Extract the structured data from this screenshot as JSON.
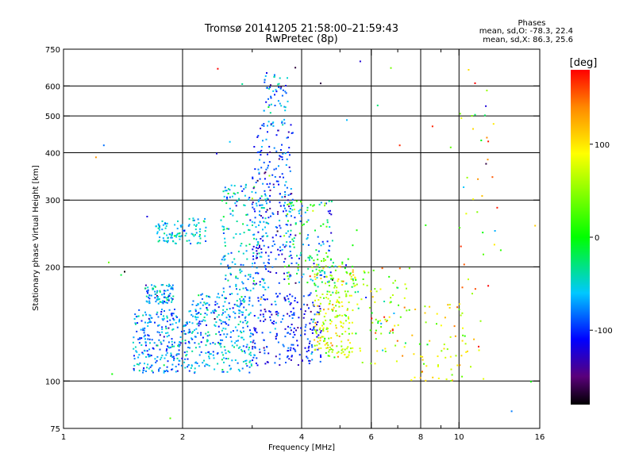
{
  "chart_data": {
    "type": "scatter",
    "title": "Tromsø 20141205 21:58:00–21:59:43",
    "subtitle": "RwPretec (8p)",
    "xlabel": "Frequency [MHz]",
    "ylabel": "Stationary phase Virtual Height [km]",
    "x_scale": "log",
    "y_scale": "log",
    "xlim": [
      1,
      16
    ],
    "ylim": [
      75,
      750
    ],
    "xticks": [
      1,
      2,
      4,
      6,
      8,
      10,
      16
    ],
    "xgrid": [
      2,
      4,
      6,
      8,
      10
    ],
    "xminor": [
      3,
      5,
      7,
      9
    ],
    "yticks": [
      75,
      100,
      200,
      300,
      400,
      500,
      600,
      750
    ],
    "ygrid": [
      100,
      200,
      300,
      400,
      500,
      600
    ],
    "grid": true,
    "phases": {
      "heading": "Phases",
      "o_line": "mean, sd,O:  -78.3, 22.4",
      "x_line": "mean, sd,X:   86.3, 25.6"
    },
    "colorbar": {
      "label": "[deg]",
      "range": [
        -180,
        180
      ],
      "ticks": [
        {
          "value": 100,
          "label": "100"
        },
        {
          "value": 0,
          "label": "0"
        },
        {
          "value": -100,
          "label": "-100"
        }
      ],
      "stops": [
        {
          "value": -180,
          "color": "#000000"
        },
        {
          "value": -150,
          "color": "#5a007a"
        },
        {
          "value": -110,
          "color": "#0000ff"
        },
        {
          "value": -60,
          "color": "#00c8ff"
        },
        {
          "value": 0,
          "color": "#00ff00"
        },
        {
          "value": 90,
          "color": "#ffff00"
        },
        {
          "value": 140,
          "color": "#ff8800"
        },
        {
          "value": 180,
          "color": "#ff0000"
        }
      ]
    },
    "clusters": [
      {
        "n": 260,
        "x": [
          1.5,
          2.1
        ],
        "y": [
          105,
          155
        ],
        "phase": [
          -75,
          25
        ]
      },
      {
        "n": 90,
        "x": [
          1.6,
          1.9
        ],
        "y": [
          160,
          180
        ],
        "phase": [
          -70,
          25
        ]
      },
      {
        "n": 60,
        "x": [
          1.7,
          2.0
        ],
        "y": [
          230,
          265
        ],
        "phase": [
          -60,
          20
        ]
      },
      {
        "n": 40,
        "x": [
          2.0,
          2.3
        ],
        "y": [
          230,
          270
        ],
        "phase": [
          -60,
          20
        ]
      },
      {
        "n": 300,
        "x": [
          2.1,
          3.0
        ],
        "y": [
          105,
          170
        ],
        "phase": [
          -65,
          25
        ]
      },
      {
        "n": 180,
        "x": [
          2.5,
          3.3
        ],
        "y": [
          170,
          330
        ],
        "phase": [
          -60,
          25
        ]
      },
      {
        "n": 220,
        "x": [
          3.0,
          3.8
        ],
        "y": [
          180,
          480
        ],
        "phase": [
          -100,
          22
        ]
      },
      {
        "n": 60,
        "x": [
          3.2,
          3.7
        ],
        "y": [
          470,
          650
        ],
        "phase": [
          -75,
          30
        ]
      },
      {
        "n": 220,
        "x": [
          3.0,
          4.5
        ],
        "y": [
          110,
          170
        ],
        "phase": [
          -105,
          20
        ]
      },
      {
        "n": 150,
        "x": [
          3.6,
          4.8
        ],
        "y": [
          180,
          300
        ],
        "phase": [
          -40,
          55
        ]
      },
      {
        "n": 160,
        "x": [
          4.3,
          5.4
        ],
        "y": [
          115,
          170
        ],
        "phase": [
          75,
          35
        ]
      },
      {
        "n": 80,
        "x": [
          4.2,
          5.5
        ],
        "y": [
          170,
          210
        ],
        "phase": [
          40,
          60
        ]
      },
      {
        "n": 90,
        "x": [
          5.3,
          7.5
        ],
        "y": [
          110,
          200
        ],
        "phase": [
          60,
          60
        ]
      },
      {
        "n": 60,
        "x": [
          7.5,
          10.5
        ],
        "y": [
          100,
          160
        ],
        "phase": [
          90,
          40
        ]
      },
      {
        "n": 40,
        "x": [
          10.0,
          12.5
        ],
        "y": [
          90,
          620
        ],
        "phase": [
          90,
          50
        ]
      },
      {
        "n": 45,
        "x": [
          1.2,
          16.0
        ],
        "y": [
          78,
          700
        ],
        "phase": [
          0,
          110
        ]
      }
    ]
  }
}
